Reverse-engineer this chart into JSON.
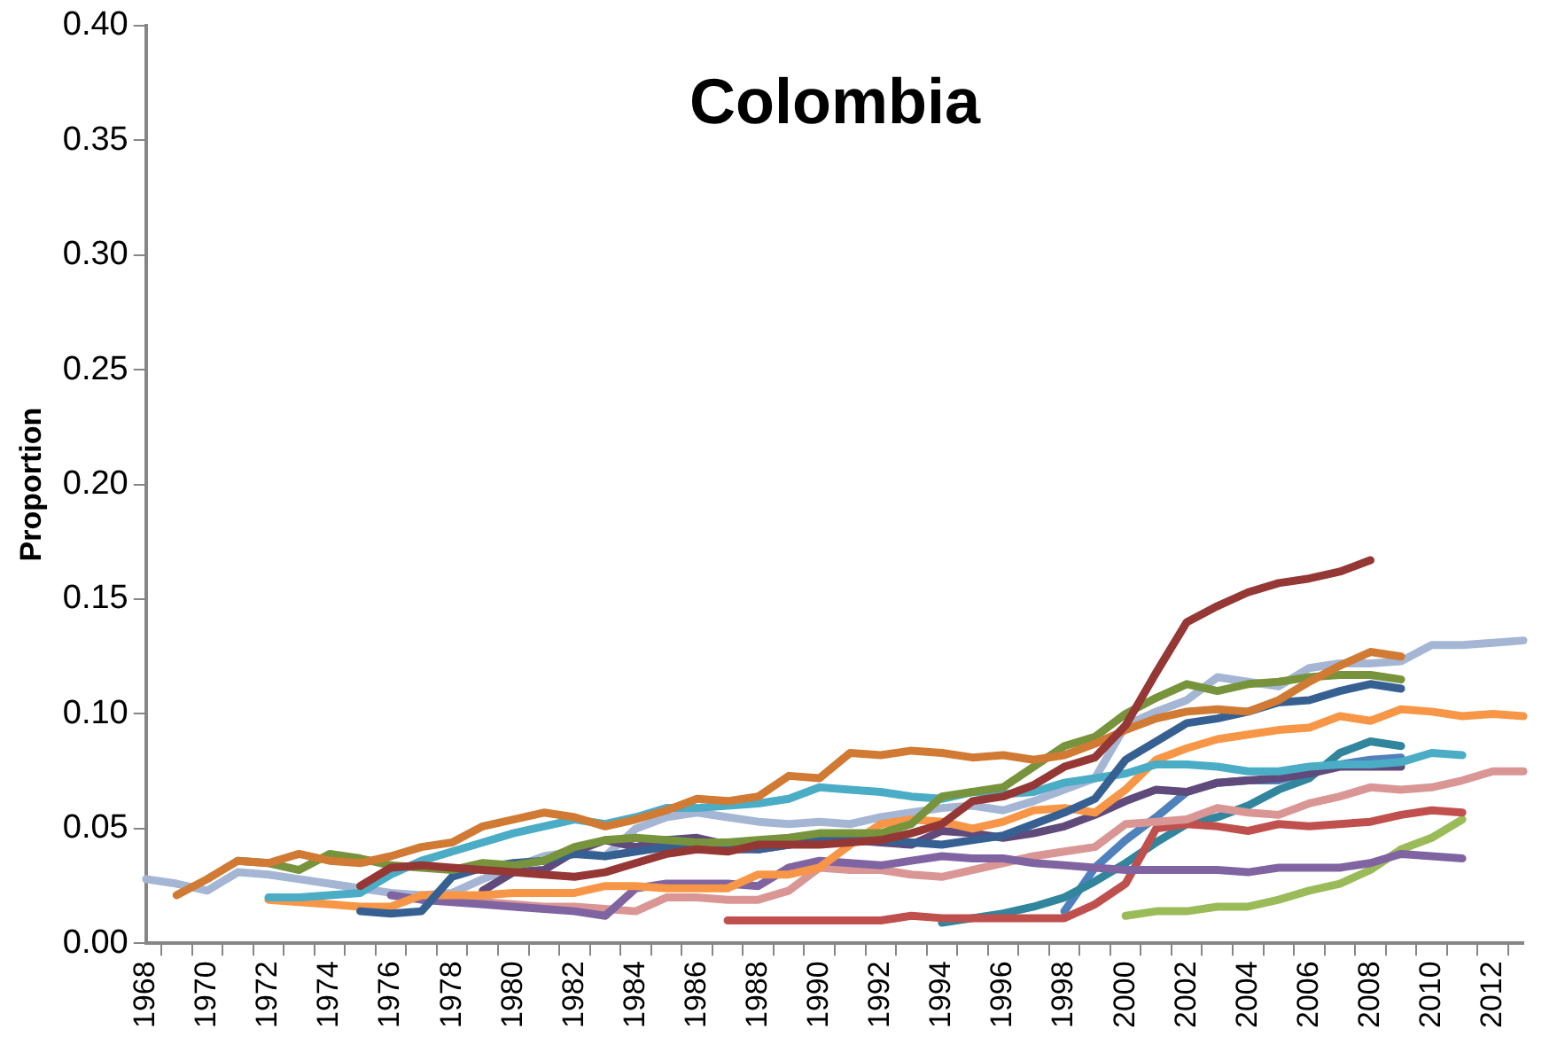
{
  "chart_data": {
    "type": "line",
    "title": "Colombia",
    "ylabel": "Proportion",
    "categories": [
      "1968",
      null,
      "1970",
      null,
      "1972",
      null,
      "1974",
      null,
      "1976",
      null,
      "1978",
      null,
      "1980",
      null,
      "1982",
      null,
      "1984",
      null,
      "1986",
      null,
      "1988",
      null,
      "1990",
      null,
      "1992",
      null,
      "1994",
      null,
      "1996",
      null,
      "1998",
      null,
      "2000",
      null,
      "2002",
      null,
      "2004",
      null,
      "2006",
      null,
      "2008",
      null,
      "2010",
      null,
      "2012",
      null
    ],
    "ylim": [
      0,
      0.4
    ],
    "yticks": [
      {
        "value": 0,
        "label": "0.00"
      },
      {
        "value": 0.05,
        "label": "0.05"
      },
      {
        "value": 0.1,
        "label": "0.10"
      },
      {
        "value": 0.15,
        "label": "0.15"
      },
      {
        "value": 0.2,
        "label": "0.20"
      },
      {
        "value": 0.25,
        "label": "0.25"
      },
      {
        "value": 0.3,
        "label": "0.30"
      },
      {
        "value": 0.35,
        "label": "0.35"
      },
      {
        "value": 0.4,
        "label": "0.40"
      }
    ],
    "series": [
      {
        "color": "#953735",
        "values": [
          null,
          null,
          null,
          null,
          null,
          null,
          null,
          0.025,
          0.033,
          0.034,
          0.033,
          0.032,
          0.031,
          0.03,
          0.029,
          0.031,
          0.035,
          0.039,
          0.041,
          0.04,
          0.043,
          0.043,
          0.043,
          0.044,
          0.045,
          0.048,
          0.052,
          0.062,
          0.064,
          0.069,
          0.077,
          0.081,
          0.095,
          0.118,
          0.14,
          0.147,
          0.153,
          0.157,
          0.159,
          0.162,
          0.167,
          null,
          null,
          null,
          null,
          null
        ]
      },
      {
        "color": "#D07A34",
        "values": [
          null,
          0.021,
          0.028,
          0.036,
          0.035,
          0.039,
          0.036,
          0.035,
          0.038,
          0.042,
          0.044,
          0.051,
          0.054,
          0.057,
          0.055,
          0.051,
          0.054,
          0.058,
          0.063,
          0.062,
          0.064,
          0.073,
          0.072,
          0.083,
          0.082,
          0.084,
          0.083,
          0.081,
          0.082,
          0.08,
          0.082,
          0.087,
          0.093,
          0.098,
          0.101,
          0.102,
          0.101,
          0.106,
          0.114,
          0.121,
          0.127,
          0.125,
          null,
          null,
          null,
          null
        ]
      },
      {
        "color": "#77933C",
        "values": [
          null,
          null,
          null,
          0.036,
          0.035,
          0.032,
          0.039,
          0.037,
          0.034,
          0.033,
          0.032,
          0.035,
          0.034,
          0.036,
          0.042,
          0.045,
          0.046,
          0.045,
          0.044,
          0.044,
          0.045,
          0.046,
          0.048,
          0.048,
          0.048,
          0.052,
          0.064,
          0.066,
          0.068,
          0.077,
          0.086,
          0.09,
          0.1,
          0.107,
          0.113,
          0.11,
          0.113,
          0.114,
          0.116,
          0.117,
          0.117,
          0.115,
          null,
          null,
          null,
          null
        ]
      },
      {
        "color": "#376092",
        "values": [
          null,
          null,
          null,
          null,
          null,
          null,
          null,
          0.014,
          0.013,
          0.014,
          0.029,
          0.033,
          0.035,
          0.036,
          0.039,
          0.038,
          0.04,
          0.042,
          0.042,
          0.041,
          0.041,
          0.043,
          0.045,
          0.045,
          0.045,
          0.044,
          0.043,
          0.045,
          0.047,
          0.052,
          0.057,
          0.063,
          0.08,
          0.088,
          0.096,
          0.098,
          0.101,
          0.105,
          0.106,
          0.11,
          0.113,
          0.111,
          null,
          null,
          null,
          null
        ]
      },
      {
        "color": "#4BACC6",
        "values": [
          null,
          null,
          null,
          null,
          0.02,
          0.02,
          0.021,
          0.022,
          0.03,
          0.036,
          0.04,
          0.044,
          0.048,
          0.051,
          0.054,
          0.052,
          0.055,
          0.059,
          0.059,
          0.06,
          0.061,
          0.063,
          0.068,
          0.067,
          0.066,
          0.064,
          0.063,
          0.066,
          0.065,
          0.066,
          0.07,
          0.072,
          0.074,
          0.078,
          0.078,
          0.077,
          0.075,
          0.075,
          0.077,
          0.078,
          0.078,
          0.079,
          0.083,
          0.082,
          null,
          null
        ]
      },
      {
        "color": "#F79646",
        "values": [
          null,
          null,
          null,
          null,
          0.019,
          0.018,
          0.017,
          0.016,
          0.016,
          0.021,
          0.021,
          0.021,
          0.022,
          0.022,
          0.022,
          0.025,
          0.025,
          0.024,
          0.024,
          0.024,
          0.03,
          0.03,
          0.033,
          0.043,
          0.052,
          0.054,
          0.053,
          0.05,
          0.053,
          0.058,
          0.059,
          0.057,
          0.067,
          0.08,
          0.085,
          0.089,
          0.091,
          0.093,
          0.094,
          0.099,
          0.097,
          0.102,
          0.101,
          0.099,
          0.1,
          0.099
        ]
      },
      {
        "color": "#604A7B",
        "values": [
          null,
          null,
          null,
          null,
          null,
          null,
          null,
          null,
          null,
          null,
          null,
          0.023,
          0.031,
          0.032,
          0.04,
          0.045,
          0.042,
          0.045,
          0.046,
          0.043,
          0.041,
          0.043,
          0.046,
          0.045,
          0.044,
          0.043,
          0.049,
          0.048,
          0.046,
          0.048,
          0.051,
          0.056,
          0.062,
          0.067,
          0.066,
          0.07,
          0.071,
          0.072,
          0.074,
          0.077,
          0.077,
          0.077,
          null,
          null,
          null,
          null
        ]
      },
      {
        "color": "#8064A2",
        "values": [
          null,
          null,
          null,
          null,
          null,
          null,
          null,
          null,
          0.021,
          0.019,
          0.018,
          0.017,
          0.016,
          0.015,
          0.014,
          0.012,
          0.024,
          0.026,
          0.026,
          0.026,
          0.025,
          0.033,
          0.036,
          0.035,
          0.034,
          0.036,
          0.038,
          0.037,
          0.037,
          0.035,
          0.034,
          0.033,
          0.032,
          0.032,
          0.032,
          0.032,
          0.031,
          0.033,
          0.033,
          0.033,
          0.035,
          0.039,
          0.038,
          0.037,
          null,
          null
        ]
      },
      {
        "color": "#D99694",
        "values": [
          null,
          null,
          null,
          null,
          null,
          null,
          null,
          null,
          null,
          0.02,
          0.019,
          0.018,
          0.017,
          0.016,
          0.016,
          0.015,
          0.014,
          0.02,
          0.02,
          0.019,
          0.019,
          0.023,
          0.033,
          0.032,
          0.032,
          0.03,
          0.029,
          0.032,
          0.035,
          0.038,
          0.04,
          0.042,
          0.052,
          0.053,
          0.054,
          0.059,
          0.057,
          0.056,
          0.061,
          0.064,
          0.068,
          0.067,
          0.068,
          0.071,
          0.075,
          0.075
        ]
      },
      {
        "color": "#C0504D",
        "values": [
          null,
          null,
          null,
          null,
          null,
          null,
          null,
          null,
          null,
          null,
          null,
          null,
          null,
          null,
          null,
          null,
          null,
          null,
          null,
          0.01,
          0.01,
          0.01,
          0.01,
          0.01,
          0.01,
          0.012,
          0.011,
          0.011,
          0.011,
          0.011,
          0.011,
          0.017,
          0.026,
          0.05,
          0.052,
          0.051,
          0.049,
          0.052,
          0.051,
          0.052,
          0.053,
          0.056,
          0.058,
          0.057,
          null,
          null
        ]
      },
      {
        "color": "#31859C",
        "values": [
          null,
          null,
          null,
          null,
          null,
          null,
          null,
          null,
          null,
          null,
          null,
          null,
          null,
          null,
          null,
          null,
          null,
          null,
          null,
          null,
          null,
          null,
          null,
          null,
          null,
          null,
          0.009,
          0.011,
          0.013,
          0.016,
          0.02,
          0.027,
          0.035,
          0.044,
          0.052,
          0.055,
          0.06,
          0.067,
          0.072,
          0.083,
          0.088,
          0.086,
          null,
          null,
          null,
          null
        ]
      },
      {
        "color": "#4F81BD",
        "values": [
          null,
          null,
          null,
          null,
          null,
          null,
          null,
          null,
          null,
          null,
          null,
          null,
          null,
          null,
          null,
          null,
          null,
          null,
          null,
          null,
          null,
          null,
          null,
          null,
          null,
          null,
          null,
          null,
          null,
          null,
          0.014,
          0.033,
          0.045,
          0.055,
          0.066,
          0.07,
          0.071,
          0.071,
          0.075,
          0.078,
          0.08,
          0.081,
          null,
          null,
          null,
          null
        ]
      },
      {
        "color": "#9BBB59",
        "values": [
          null,
          null,
          null,
          null,
          null,
          null,
          null,
          null,
          null,
          null,
          null,
          null,
          null,
          null,
          null,
          null,
          null,
          null,
          null,
          null,
          null,
          null,
          null,
          null,
          null,
          null,
          null,
          null,
          null,
          null,
          null,
          null,
          0.012,
          0.014,
          0.014,
          0.016,
          0.016,
          0.019,
          0.023,
          0.026,
          0.032,
          0.041,
          0.046,
          0.054,
          null,
          null
        ]
      },
      {
        "color": "#A5B6D4",
        "values": [
          0.028,
          0.026,
          0.023,
          0.031,
          0.03,
          0.028,
          0.026,
          0.024,
          0.022,
          0.021,
          0.022,
          0.028,
          0.033,
          0.038,
          0.04,
          0.038,
          0.05,
          0.055,
          0.057,
          0.055,
          0.053,
          0.052,
          0.053,
          0.052,
          0.055,
          0.057,
          0.059,
          0.06,
          0.058,
          0.062,
          0.067,
          0.072,
          0.095,
          0.101,
          0.106,
          0.116,
          0.114,
          0.112,
          0.12,
          0.122,
          0.122,
          0.123,
          0.13,
          0.13,
          0.131,
          0.132
        ]
      }
    ]
  }
}
